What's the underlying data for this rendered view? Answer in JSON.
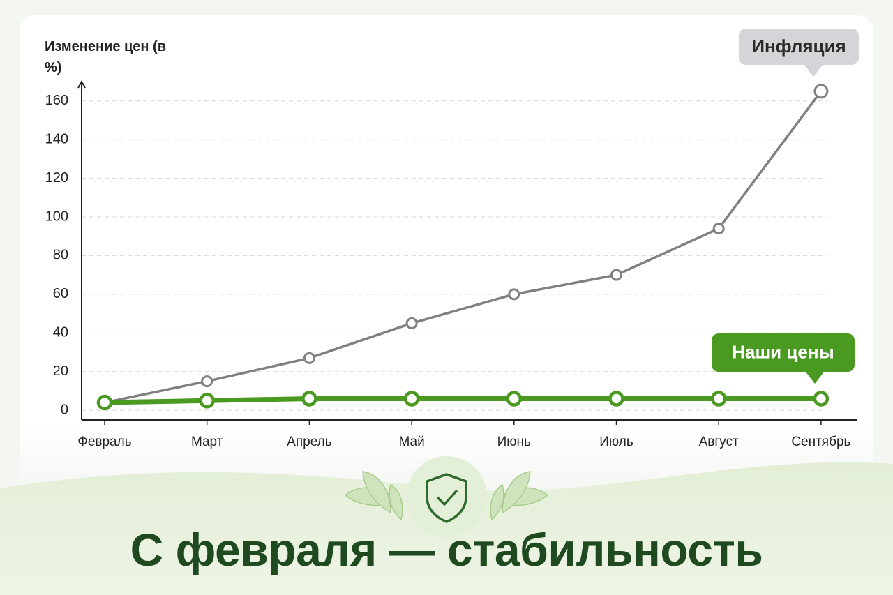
{
  "chart_data": {
    "type": "line",
    "y_label": "Изменение цен (в %)",
    "caption": "С февраля — стабильность",
    "categories": [
      "Февраль",
      "Март",
      "Апрель",
      "Май",
      "Июнь",
      "Июль",
      "Август",
      "Сентябрь"
    ],
    "series": [
      {
        "name": "Инфляция",
        "color": "#808080",
        "values": [
          4,
          15,
          27,
          45,
          60,
          70,
          94,
          165
        ]
      },
      {
        "name": "Наши цены",
        "color": "#4a9a22",
        "values": [
          4,
          5,
          6,
          6,
          6,
          6,
          6,
          6
        ]
      }
    ],
    "ylim": [
      -5,
      170
    ],
    "yticks": [
      0,
      20,
      40,
      60,
      80,
      100,
      120,
      140,
      160
    ],
    "grid": true
  }
}
